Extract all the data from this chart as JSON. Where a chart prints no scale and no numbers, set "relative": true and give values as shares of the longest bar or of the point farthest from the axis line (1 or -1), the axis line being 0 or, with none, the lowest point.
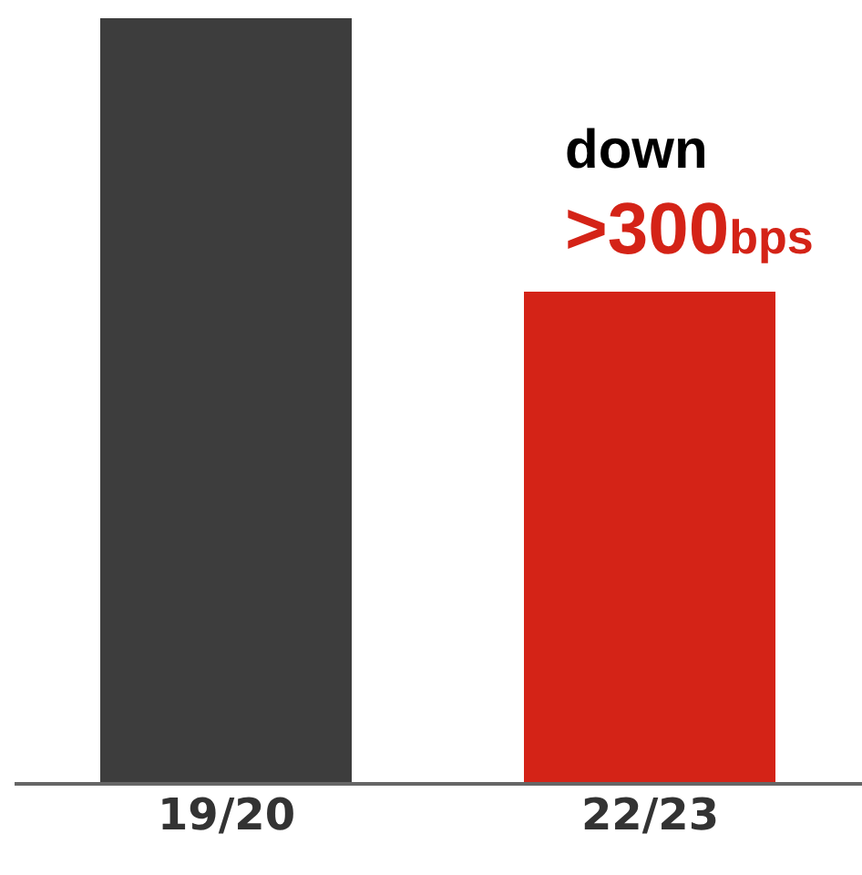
{
  "chart_data": {
    "type": "bar",
    "relative": true,
    "categories": [
      "19/20",
      "22/23"
    ],
    "values": [
      1,
      0.643
    ],
    "colors": [
      "#3d3d3d",
      "#d42317"
    ],
    "annotations": [
      "down",
      ">300bps"
    ]
  }
}
